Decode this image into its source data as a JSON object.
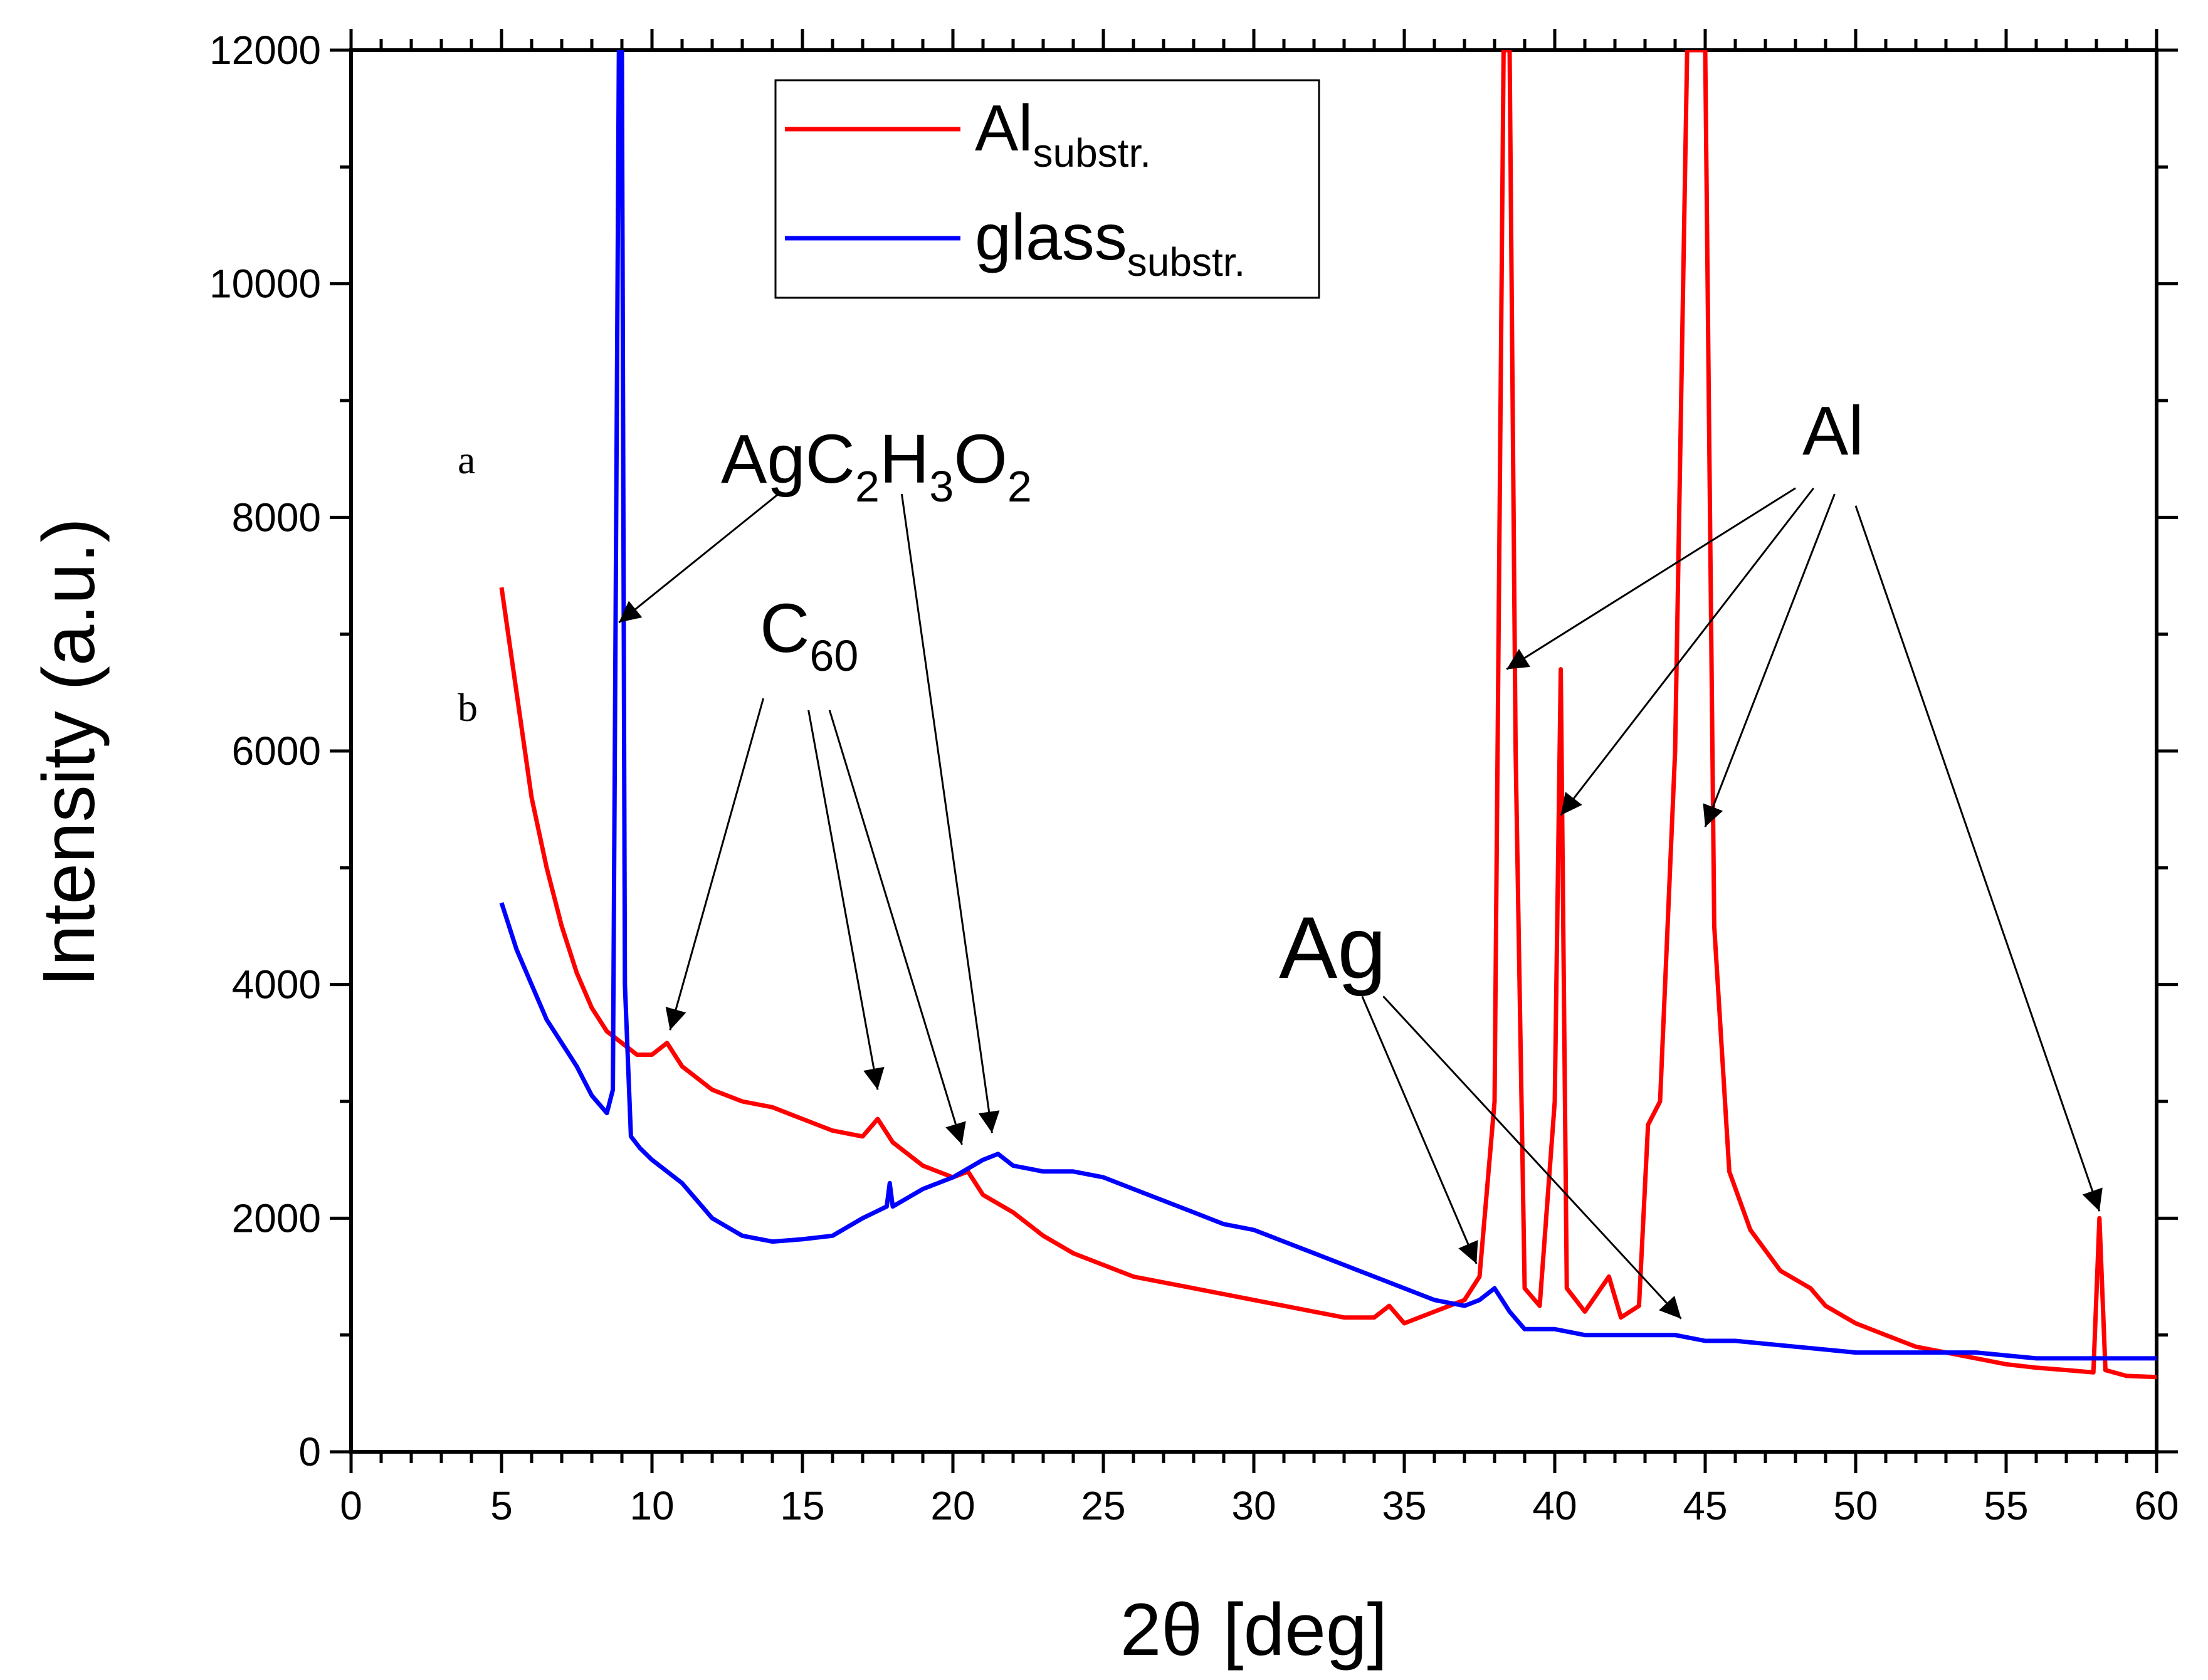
{
  "chart_data": {
    "type": "line",
    "title": "",
    "xlabel": "2θ [deg]",
    "ylabel": "Intensity (a.u.)",
    "xlim": [
      0,
      60
    ],
    "ylim": [
      0,
      12000
    ],
    "xticks": [
      0,
      5,
      10,
      15,
      20,
      25,
      30,
      35,
      40,
      45,
      50,
      55,
      60
    ],
    "yticks": [
      0,
      2000,
      4000,
      6000,
      8000,
      10000,
      12000
    ],
    "grid": false,
    "legend_position": "top-center",
    "series": [
      {
        "name": "Al",
        "name_sub": "substr.",
        "color": "#ff0000",
        "x": [
          5,
          5.5,
          6,
          6.5,
          7,
          7.5,
          8,
          8.5,
          9,
          9.5,
          10,
          10.5,
          11,
          12,
          13,
          14,
          15,
          16,
          17,
          17.5,
          18,
          19,
          20,
          20.5,
          21,
          22,
          23,
          24,
          25,
          26,
          27,
          28,
          29,
          30,
          31,
          32,
          33,
          34,
          34.5,
          35,
          36,
          37,
          37.5,
          38,
          38.3,
          38.5,
          38.7,
          39,
          39.5,
          40,
          40.2,
          40.4,
          41,
          41.8,
          42.2,
          42.8,
          43.1,
          43.5,
          44,
          44.4,
          44.7,
          45,
          45.3,
          45.8,
          46.5,
          47.5,
          48.5,
          49,
          50,
          51,
          52,
          53,
          54,
          55,
          56,
          57,
          57.9,
          58.1,
          58.3,
          59,
          60
        ],
        "y": [
          7400,
          6500,
          5600,
          5000,
          4500,
          4100,
          3800,
          3600,
          3500,
          3400,
          3400,
          3500,
          3300,
          3100,
          3000,
          2950,
          2850,
          2750,
          2700,
          2850,
          2650,
          2450,
          2350,
          2400,
          2200,
          2050,
          1850,
          1700,
          1600,
          1500,
          1450,
          1400,
          1350,
          1300,
          1250,
          1200,
          1150,
          1150,
          1250,
          1100,
          1200,
          1300,
          1500,
          3000,
          12000,
          12000,
          6000,
          1400,
          1250,
          3000,
          6700,
          1400,
          1200,
          1500,
          1150,
          1250,
          2800,
          3000,
          6000,
          12000,
          12000,
          12000,
          4500,
          2400,
          1900,
          1550,
          1400,
          1250,
          1100,
          1000,
          900,
          850,
          800,
          750,
          720,
          700,
          680,
          2000,
          700,
          650,
          640
        ]
      },
      {
        "name": "glass",
        "name_sub": "substr.",
        "color": "#0000ff",
        "x": [
          5,
          5.5,
          6,
          6.5,
          7,
          7.5,
          8,
          8.5,
          8.7,
          8.9,
          9.0,
          9.1,
          9.3,
          9.6,
          10,
          11,
          12,
          13,
          14,
          15,
          16,
          17,
          17.8,
          17.9,
          18.0,
          19,
          20,
          21,
          21.5,
          22,
          23,
          24,
          25,
          26,
          27,
          28,
          29,
          30,
          31,
          32,
          33,
          34,
          35,
          36,
          37,
          37.5,
          38,
          38.5,
          39,
          40,
          41,
          42,
          43,
          44,
          45,
          46,
          48,
          50,
          52,
          54,
          56,
          58,
          60
        ],
        "y": [
          4700,
          4300,
          4000,
          3700,
          3500,
          3300,
          3050,
          2900,
          3100,
          12000,
          12000,
          4000,
          2700,
          2600,
          2500,
          2300,
          2000,
          1850,
          1800,
          1820,
          1850,
          2000,
          2100,
          2300,
          2100,
          2250,
          2350,
          2500,
          2550,
          2450,
          2400,
          2400,
          2350,
          2250,
          2150,
          2050,
          1950,
          1900,
          1800,
          1700,
          1600,
          1500,
          1400,
          1300,
          1250,
          1300,
          1400,
          1200,
          1050,
          1050,
          1000,
          1000,
          1000,
          1000,
          950,
          950,
          900,
          850,
          850,
          850,
          800,
          800,
          800
        ]
      }
    ],
    "curve_labels": [
      "a",
      "b"
    ],
    "annotations": {
      "acetate": {
        "text": "AgC",
        "sub1": "2",
        "mid1": "H",
        "sub2": "3",
        "mid2": "O",
        "sub3": "2",
        "targets_x": [
          8.9,
          21.3
        ]
      },
      "c60": {
        "text": "C",
        "sub": "60",
        "targets_x": [
          10.6,
          17.5,
          20.3
        ]
      },
      "ag": {
        "text": "Ag",
        "targets_x": [
          37.4,
          44.2
        ]
      },
      "al": {
        "text": "Al",
        "targets_x": [
          38.4,
          40.2,
          45.0,
          58.1
        ]
      }
    }
  }
}
